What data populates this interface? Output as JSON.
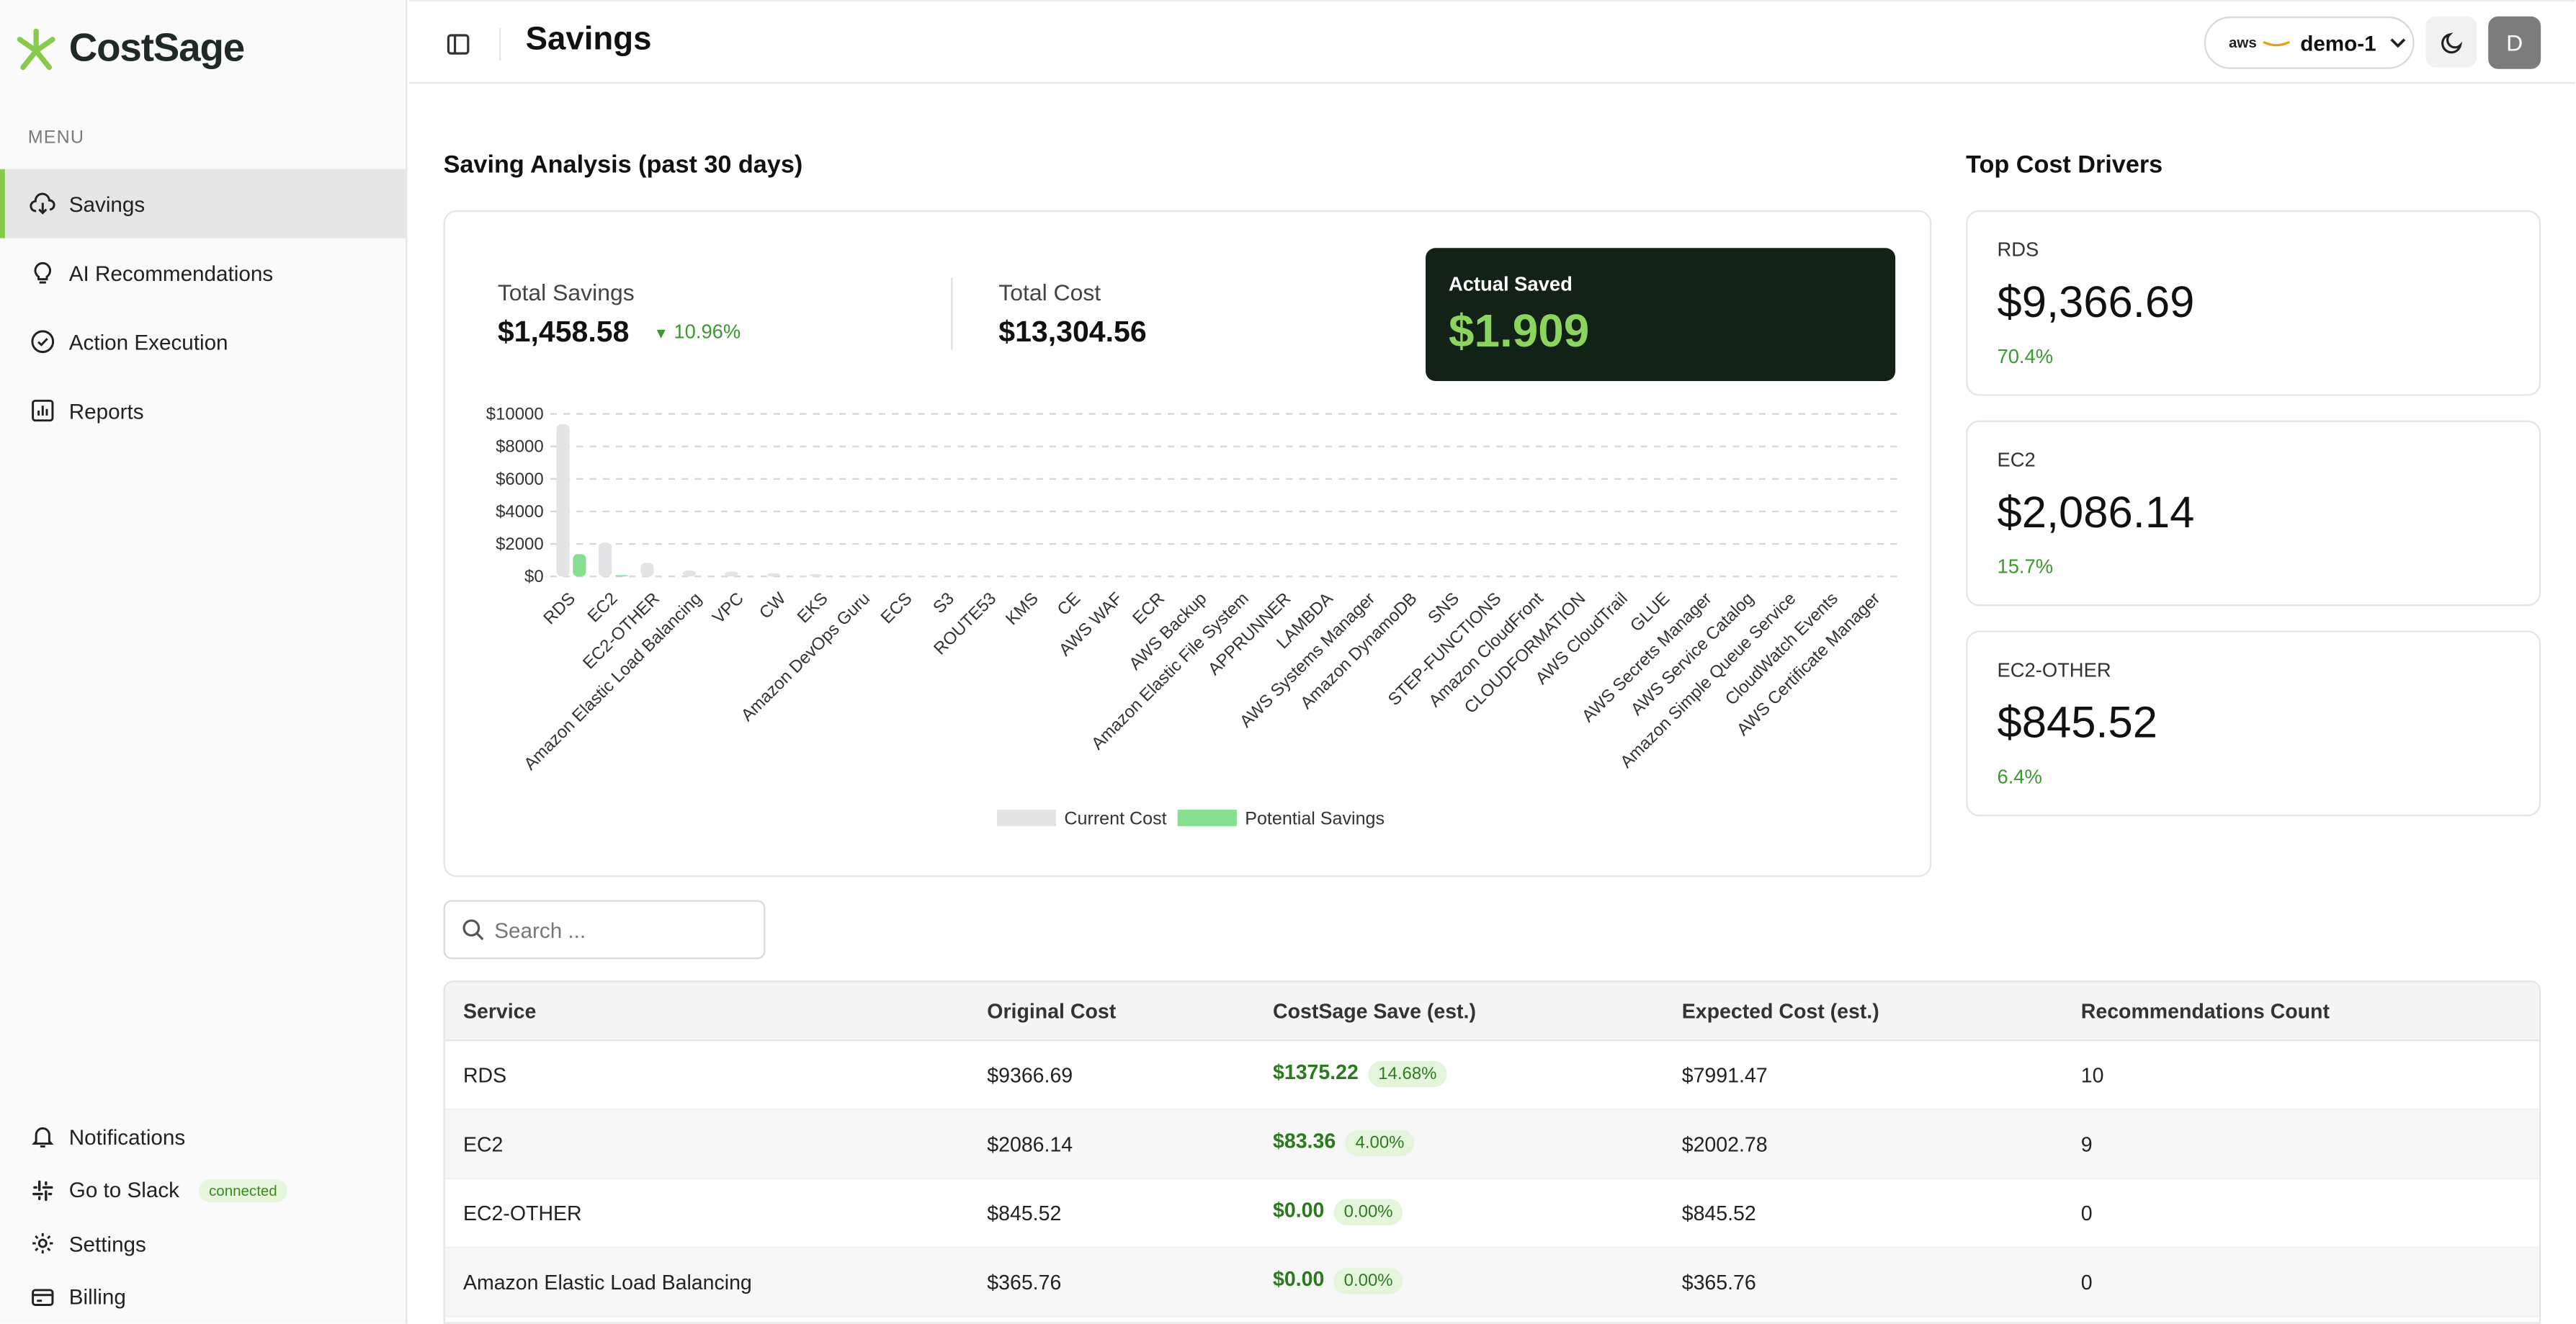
{
  "brand": {
    "name": "CostSage",
    "accent": "#86cb4b"
  },
  "sidebar": {
    "menu_label": "MENU",
    "items": [
      {
        "label": "Savings",
        "icon": "cloud-download-icon",
        "active": true
      },
      {
        "label": "AI Recommendations",
        "icon": "lightbulb-icon"
      },
      {
        "label": "Action Execution",
        "icon": "check-circle-icon"
      },
      {
        "label": "Reports",
        "icon": "bar-chart-icon"
      }
    ],
    "bottom": {
      "notifications": "Notifications",
      "slack": "Go to Slack",
      "slack_badge": "connected",
      "settings": "Settings",
      "billing": "Billing"
    }
  },
  "header": {
    "title": "Savings",
    "account": "demo-1",
    "account_logo": "aws",
    "avatar": "D"
  },
  "analysis": {
    "title": "Saving Analysis (past 30 days)",
    "total_savings_label": "Total Savings",
    "total_savings_value": "$1,458.58",
    "total_savings_change": "10.96%",
    "total_cost_label": "Total Cost",
    "total_cost_value": "$13,304.56",
    "actual_saved_label": "Actual Saved",
    "actual_saved_value": "$1.909"
  },
  "chart_data": {
    "type": "bar",
    "categories": [
      "RDS",
      "EC2",
      "EC2-OTHER",
      "Amazon Elastic Load Balancing",
      "VPC",
      "CW",
      "EKS",
      "Amazon DevOps Guru",
      "ECS",
      "S3",
      "ROUTE53",
      "KMS",
      "CE",
      "AWS WAF",
      "ECR",
      "AWS Backup",
      "Amazon Elastic File System",
      "APPRUNNER",
      "LAMBDA",
      "AWS Systems Manager",
      "Amazon DynamoDB",
      "SNS",
      "STEP-FUNCTIONS",
      "Amazon CloudFront",
      "CLOUDFORMATION",
      "AWS CloudTrail",
      "GLUE",
      "AWS Secrets Manager",
      "AWS Service Catalog",
      "Amazon Simple Queue Service",
      "CloudWatch Events",
      "AWS Certificate Manager"
    ],
    "series": [
      {
        "name": "Current Cost",
        "color": "#e4e4e7",
        "values": [
          9366.69,
          2086.14,
          845.52,
          365.76,
          300,
          200,
          150,
          60,
          40,
          30,
          20,
          15,
          10,
          8,
          6,
          5,
          4,
          3,
          3,
          2,
          2,
          1,
          1,
          1,
          1,
          1,
          1,
          1,
          0.5,
          0.5,
          0.5,
          0.5
        ]
      },
      {
        "name": "Potential Savings",
        "color": "#86e08f",
        "values": [
          1375.22,
          83.36,
          0,
          0,
          0,
          0,
          0,
          0,
          0,
          0,
          0,
          0,
          0,
          0,
          0,
          0,
          0,
          0,
          0,
          0,
          0,
          0,
          0,
          0,
          0,
          0,
          0,
          0,
          0,
          0,
          0,
          0
        ]
      }
    ],
    "y_ticks": [
      "$0",
      "$2000",
      "$4000",
      "$6000",
      "$8000",
      "$10000"
    ],
    "ylim": [
      0,
      10000
    ],
    "grid": true,
    "legend": "bottom-center"
  },
  "drivers": {
    "title": "Top Cost Drivers",
    "items": [
      {
        "name": "RDS",
        "value": "$9,366.69",
        "pct": "70.4%"
      },
      {
        "name": "EC2",
        "value": "$2,086.14",
        "pct": "15.7%"
      },
      {
        "name": "EC2-OTHER",
        "value": "$845.52",
        "pct": "6.4%"
      }
    ]
  },
  "search": {
    "placeholder": "Search ..."
  },
  "table": {
    "headers": [
      "Service",
      "Original Cost",
      "CostSage Save (est.)",
      "Expected Cost (est.)",
      "Recommendations Count"
    ],
    "rows": [
      {
        "service": "RDS",
        "original": "$9366.69",
        "save": "$1375.22",
        "save_pct": "14.68%",
        "expected": "$7991.47",
        "count": "10"
      },
      {
        "service": "EC2",
        "original": "$2086.14",
        "save": "$83.36",
        "save_pct": "4.00%",
        "expected": "$2002.78",
        "count": "9"
      },
      {
        "service": "EC2-OTHER",
        "original": "$845.52",
        "save": "$0.00",
        "save_pct": "0.00%",
        "expected": "$845.52",
        "count": "0"
      },
      {
        "service": "Amazon Elastic Load Balancing",
        "original": "$365.76",
        "save": "$0.00",
        "save_pct": "0.00%",
        "expected": "$365.76",
        "count": "0"
      }
    ]
  }
}
